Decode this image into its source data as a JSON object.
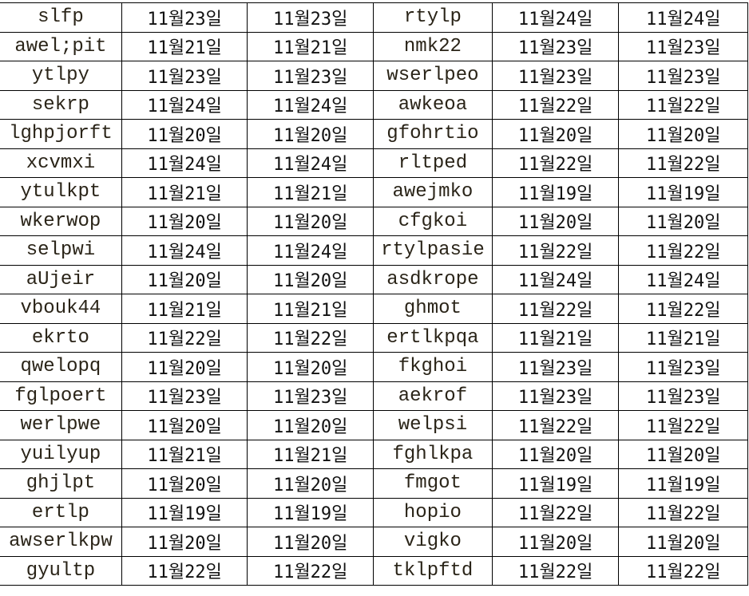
{
  "rows": [
    [
      "slfp",
      "11월23일",
      "11월23일",
      "rtylp",
      "11월24일",
      "11월24일"
    ],
    [
      "awel;pit",
      "11월21일",
      "11월21일",
      "nmk22",
      "11월23일",
      "11월23일"
    ],
    [
      "ytlpy",
      "11월23일",
      "11월23일",
      "wserlpeo",
      "11월23일",
      "11월23일"
    ],
    [
      "sekrp",
      "11월24일",
      "11월24일",
      "awkeoa",
      "11월22일",
      "11월22일"
    ],
    [
      "lghpjorft",
      "11월20일",
      "11월20일",
      "gfohrtio",
      "11월20일",
      "11월20일"
    ],
    [
      "xcvmxi",
      "11월24일",
      "11월24일",
      "rltped",
      "11월22일",
      "11월22일"
    ],
    [
      "ytulkpt",
      "11월21일",
      "11월21일",
      "awejmko",
      "11월19일",
      "11월19일"
    ],
    [
      "wkerwop",
      "11월20일",
      "11월20일",
      "cfgkoi",
      "11월20일",
      "11월20일"
    ],
    [
      "selpwi",
      "11월24일",
      "11월24일",
      "rtylpasie",
      "11월22일",
      "11월22일"
    ],
    [
      "aUjeir",
      "11월20일",
      "11월20일",
      "asdkrope",
      "11월24일",
      "11월24일"
    ],
    [
      "vbouk44",
      "11월21일",
      "11월21일",
      "ghmot",
      "11월22일",
      "11월22일"
    ],
    [
      "ekrto",
      "11월22일",
      "11월22일",
      "ertlkpqa",
      "11월21일",
      "11월21일"
    ],
    [
      "qwelopq",
      "11월20일",
      "11월20일",
      "fkghoi",
      "11월23일",
      "11월23일"
    ],
    [
      "fglpoert",
      "11월23일",
      "11월23일",
      "aekrof",
      "11월23일",
      "11월23일"
    ],
    [
      "werlpwe",
      "11월20일",
      "11월20일",
      "welpsi",
      "11월22일",
      "11월22일"
    ],
    [
      "yuilyup",
      "11월21일",
      "11월21일",
      "fghlkpa",
      "11월20일",
      "11월20일"
    ],
    [
      "ghjlpt",
      "11월20일",
      "11월20일",
      "fmgot",
      "11월19일",
      "11월19일"
    ],
    [
      "ertlp",
      "11월19일",
      "11월19일",
      "hopio",
      "11월22일",
      "11월22일"
    ],
    [
      "awserlkpw",
      "11월20일",
      "11월20일",
      "vigko",
      "11월20일",
      "11월20일"
    ],
    [
      "gyultp",
      "11월22일",
      "11월22일",
      "tklpftd",
      "11월22일",
      "11월22일"
    ]
  ]
}
